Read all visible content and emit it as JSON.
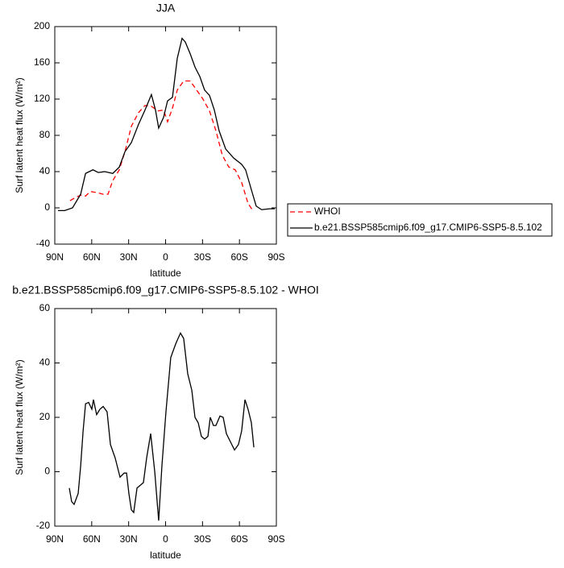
{
  "chart_data": [
    {
      "type": "line",
      "title": "JJA",
      "x_label": "latitude",
      "y_label": "Surf latent heat flux (W/m²)",
      "xlim": [
        90,
        -90
      ],
      "xticks": [
        {
          "value": 90,
          "label": "90N"
        },
        {
          "value": 60,
          "label": "60N"
        },
        {
          "value": 30,
          "label": "30N"
        },
        0,
        {
          "value": -30,
          "label": "30S"
        },
        {
          "value": -60,
          "label": "60S"
        },
        {
          "value": -90,
          "label": "90S"
        }
      ],
      "ylim": [
        -40,
        200
      ],
      "yticks": [
        -40,
        0,
        40,
        80,
        120,
        160,
        200
      ],
      "legend": "right",
      "series": [
        {
          "name": "WHOI",
          "color": "#ff0000",
          "line_style": "dashed",
          "x": [
            77.6,
            72.3,
            69,
            65,
            61.2,
            56,
            50.7,
            46.8,
            42.9,
            37.6,
            33,
            27.8,
            22,
            16.7,
            11.5,
            6.2,
            1.6,
            -1.6,
            -5.6,
            -9.5,
            -14.7,
            -20,
            -25.2,
            -30.4,
            -35.7,
            -40.9,
            -46.1,
            -51.4,
            -56.6,
            -61.8,
            -67,
            -70.4
          ],
          "values": [
            8,
            12,
            14,
            13,
            18,
            17,
            15,
            15,
            30,
            42,
            62,
            90,
            105,
            113,
            112,
            107,
            108,
            95,
            110,
            130,
            140,
            140,
            130,
            120,
            107,
            85,
            58,
            45,
            42,
            28,
            5,
            -2
          ]
        },
        {
          "name": "b.e21.BSSP585cmip6.f09_g17.CMIP6-SSP5-8.5.102",
          "color": "#000000",
          "line_style": "solid",
          "x": [
            87.4,
            82,
            75.6,
            69,
            65,
            59,
            54.7,
            49.4,
            42.9,
            37.6,
            33,
            27.8,
            22,
            16.7,
            11.5,
            8.2,
            5.6,
            1.6,
            -1.6,
            -5.6,
            -9.5,
            -13.4,
            -16,
            -20,
            -24,
            -27.8,
            -31.7,
            -35.7,
            -39.6,
            -43.5,
            -48.8,
            -55.3,
            -61.8,
            -65,
            -69.7,
            -73.6,
            -78,
            -84.7,
            -88.7
          ],
          "values": [
            -3,
            -3,
            0,
            15,
            38,
            42,
            39,
            40,
            38,
            45,
            62,
            72,
            92,
            108,
            125,
            108,
            88,
            100,
            118,
            122,
            165,
            187,
            183,
            170,
            155,
            145,
            130,
            124,
            108,
            85,
            65,
            55,
            48,
            42,
            20,
            2,
            -2,
            -1,
            -1
          ]
        }
      ]
    },
    {
      "type": "line",
      "title": "b.e21.BSSP585cmip6.f09_g17.CMIP6-SSP5-8.5.102 - WHOI",
      "x_label": "latitude",
      "y_label": "Surf latent heat flux (W/m²)",
      "xlim": [
        90,
        -90
      ],
      "xticks": [
        {
          "value": 90,
          "label": "90N"
        },
        {
          "value": 60,
          "label": "60N"
        },
        {
          "value": 30,
          "label": "30N"
        },
        0,
        {
          "value": -30,
          "label": "30S"
        },
        {
          "value": -60,
          "label": "60S"
        },
        {
          "value": -90,
          "label": "90S"
        }
      ],
      "ylim": [
        -20,
        60
      ],
      "yticks": [
        -20,
        0,
        20,
        40,
        60
      ],
      "series": [
        {
          "color": "#000000",
          "line_style": "solid",
          "x": [
            78.2,
            76.3,
            74.3,
            71,
            69,
            67,
            65,
            62.5,
            59.9,
            58.6,
            56,
            53.3,
            50.7,
            47.5,
            44.8,
            40.9,
            37,
            33.7,
            31.7,
            29.8,
            27.8,
            25.9,
            23.2,
            20.6,
            18,
            15.4,
            12.1,
            8.8,
            5.6,
            3,
            -0.3,
            -4.2,
            -8.2,
            -12.1,
            -14.7,
            -18,
            -21.3,
            -23.9,
            -26.5,
            -29.1,
            -31.7,
            -34.4,
            -36.3,
            -38.9,
            -40.9,
            -44.2,
            -46.8,
            -49.4,
            -52.7,
            -56,
            -59.2,
            -61.8,
            -64.5,
            -67,
            -69.7,
            -71.7
          ],
          "values": [
            -6,
            -11,
            -12,
            -8,
            2,
            15,
            25,
            25.5,
            23,
            26.5,
            21,
            23,
            24,
            22,
            10,
            5,
            -2,
            -0.5,
            -0.5,
            -8,
            -14,
            -15,
            -6,
            -5,
            -4,
            5,
            14,
            0,
            -18,
            2,
            22,
            42,
            47,
            51,
            49,
            36,
            30,
            20,
            18,
            13,
            12,
            13,
            20,
            17,
            17,
            20.5,
            20,
            14,
            11,
            8,
            10,
            15,
            26.5,
            23,
            18,
            9
          ]
        }
      ]
    }
  ]
}
